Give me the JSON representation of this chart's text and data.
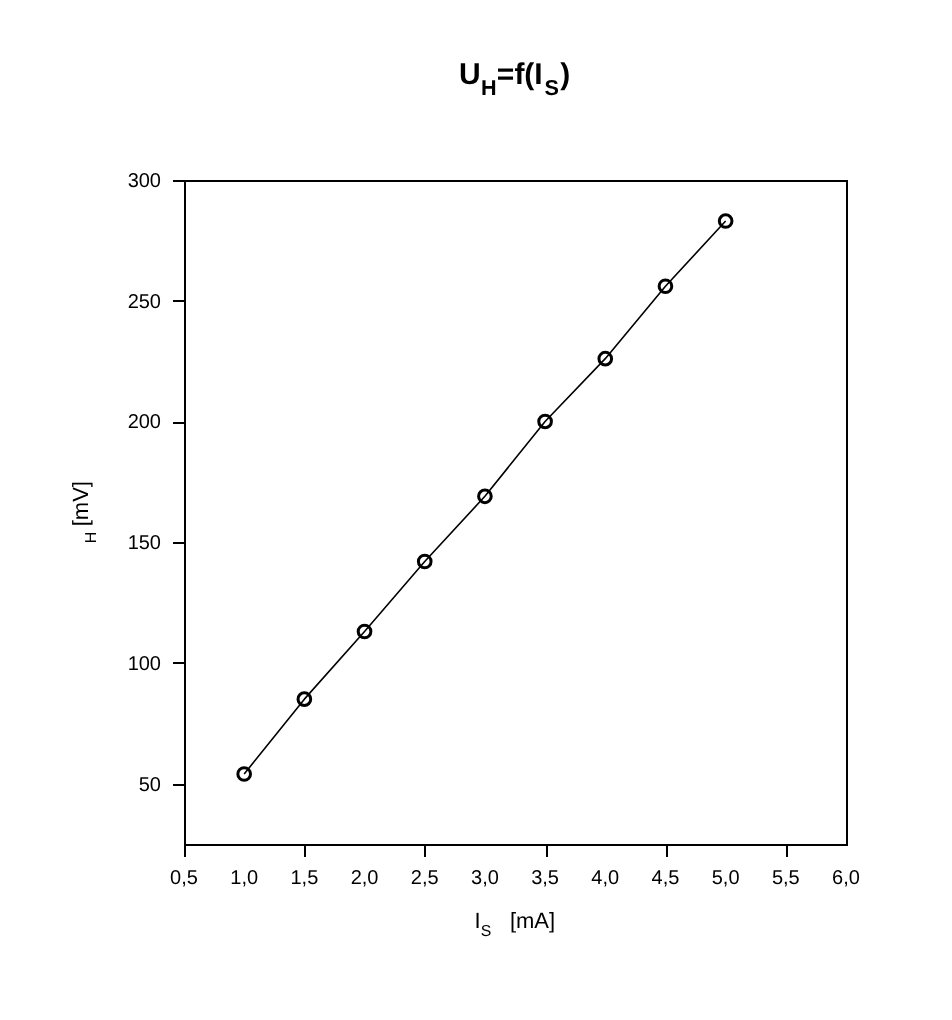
{
  "chart_data": {
    "type": "line",
    "title": "U$_{H}$=f(I$_{S}$)",
    "xlabel": "I$_{S}$   [mA]",
    "ylabel": "$_{H}$ [mV]",
    "x": [
      1.0,
      1.5,
      2.0,
      2.5,
      3.0,
      3.5,
      4.0,
      4.5,
      5.0
    ],
    "series": [
      {
        "color": "#000000",
        "values": [
          54,
          85,
          113,
          142,
          169,
          200,
          226,
          256,
          283
        ]
      }
    ],
    "marker": "circle",
    "line_style": "solid",
    "grid": false,
    "xlim": [
      0.5,
      6.0
    ],
    "ylim": [
      25,
      300
    ],
    "xticks": [
      {
        "value": 0.5,
        "label": "0,5"
      },
      {
        "value": 1.0,
        "label": "1,0"
      },
      {
        "value": 1.5,
        "label": "1,5"
      },
      {
        "value": 2.0,
        "label": "2,0"
      },
      {
        "value": 2.5,
        "label": "2,5"
      },
      {
        "value": 3.0,
        "label": "3,0"
      },
      {
        "value": 3.5,
        "label": "3,5"
      },
      {
        "value": 4.0,
        "label": "4,0"
      },
      {
        "value": 4.5,
        "label": "4,5"
      },
      {
        "value": 5.0,
        "label": "5,0"
      },
      {
        "value": 5.5,
        "label": "5,5"
      },
      {
        "value": 6.0,
        "label": "6,0"
      }
    ],
    "yticks": [
      50,
      100,
      150,
      200,
      250,
      300
    ]
  }
}
